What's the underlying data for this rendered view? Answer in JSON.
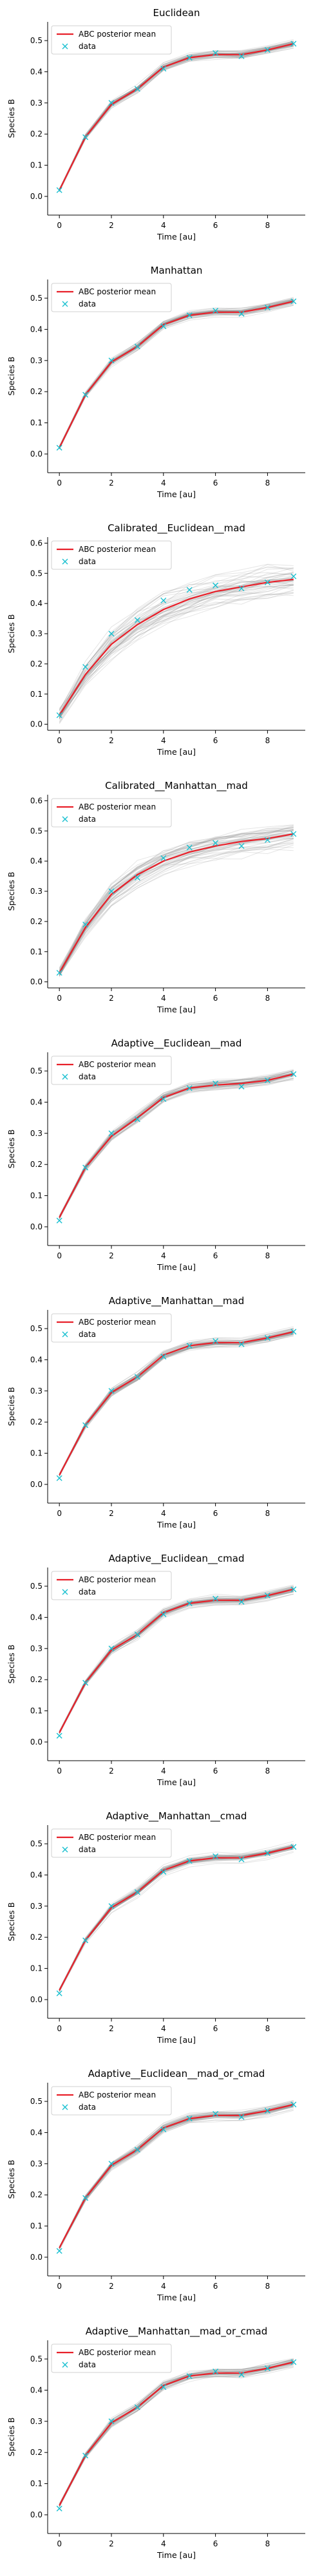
{
  "chart_data": [
    {
      "type": "line",
      "title": "Euclidean",
      "xlabel": "Time [au]",
      "ylabel": "Species B",
      "xlim": [
        -0.45,
        9.45
      ],
      "ylim": [
        -0.06,
        0.56
      ],
      "xticks": [
        0,
        2,
        4,
        6,
        8
      ],
      "yticks": [
        0.0,
        0.1,
        0.2,
        0.3,
        0.4,
        0.5
      ],
      "legend": {
        "position": "top-left",
        "entries": [
          "ABC posterior mean",
          "data"
        ]
      },
      "x": [
        0,
        1,
        2,
        3,
        4,
        5,
        6,
        7,
        8,
        9
      ],
      "series": [
        {
          "name": "ABC posterior mean",
          "kind": "line",
          "color": "#e8202a",
          "values": [
            0.02,
            0.19,
            0.295,
            0.345,
            0.415,
            0.445,
            0.455,
            0.455,
            0.47,
            0.49
          ]
        },
        {
          "name": "data",
          "kind": "marker",
          "marker": "x",
          "color": "#18c0d0",
          "values": [
            0.02,
            0.19,
            0.3,
            0.345,
            0.41,
            0.445,
            0.46,
            0.45,
            0.47,
            0.49
          ]
        }
      ],
      "simulation_spread": 0.012
    },
    {
      "type": "line",
      "title": "Manhattan",
      "xlabel": "Time [au]",
      "ylabel": "Species B",
      "xlim": [
        -0.45,
        9.45
      ],
      "ylim": [
        -0.06,
        0.56
      ],
      "xticks": [
        0,
        2,
        4,
        6,
        8
      ],
      "yticks": [
        0.0,
        0.1,
        0.2,
        0.3,
        0.4,
        0.5
      ],
      "legend": {
        "position": "top-left",
        "entries": [
          "ABC posterior mean",
          "data"
        ]
      },
      "x": [
        0,
        1,
        2,
        3,
        4,
        5,
        6,
        7,
        8,
        9
      ],
      "series": [
        {
          "name": "ABC posterior mean",
          "kind": "line",
          "color": "#e8202a",
          "values": [
            0.02,
            0.19,
            0.295,
            0.345,
            0.415,
            0.445,
            0.455,
            0.455,
            0.47,
            0.49
          ]
        },
        {
          "name": "data",
          "kind": "marker",
          "marker": "x",
          "color": "#18c0d0",
          "values": [
            0.02,
            0.19,
            0.3,
            0.345,
            0.41,
            0.445,
            0.46,
            0.45,
            0.47,
            0.49
          ]
        }
      ],
      "simulation_spread": 0.012
    },
    {
      "type": "line",
      "title": "Calibrated__Euclidean__mad",
      "xlabel": "Time [au]",
      "ylabel": "Species B",
      "xlim": [
        -0.45,
        9.45
      ],
      "ylim": [
        -0.02,
        0.62
      ],
      "xticks": [
        0,
        2,
        4,
        6,
        8
      ],
      "yticks": [
        0.0,
        0.1,
        0.2,
        0.3,
        0.4,
        0.5,
        0.6
      ],
      "legend": {
        "position": "top-left",
        "entries": [
          "ABC posterior mean",
          "data"
        ]
      },
      "x": [
        0,
        1,
        2,
        3,
        4,
        5,
        6,
        7,
        8,
        9
      ],
      "series": [
        {
          "name": "ABC posterior mean",
          "kind": "line",
          "color": "#e8202a",
          "values": [
            0.03,
            0.165,
            0.265,
            0.33,
            0.38,
            0.415,
            0.44,
            0.455,
            0.47,
            0.48
          ]
        },
        {
          "name": "data",
          "kind": "marker",
          "marker": "x",
          "color": "#18c0d0",
          "values": [
            0.03,
            0.19,
            0.3,
            0.345,
            0.41,
            0.445,
            0.46,
            0.45,
            0.47,
            0.49
          ]
        }
      ],
      "simulation_spread": 0.05
    },
    {
      "type": "line",
      "title": "Calibrated__Manhattan__mad",
      "xlabel": "Time [au]",
      "ylabel": "Species B",
      "xlim": [
        -0.45,
        9.45
      ],
      "ylim": [
        -0.02,
        0.62
      ],
      "xticks": [
        0,
        2,
        4,
        6,
        8
      ],
      "yticks": [
        0.0,
        0.1,
        0.2,
        0.3,
        0.4,
        0.5,
        0.6
      ],
      "legend": {
        "position": "top-left",
        "entries": [
          "ABC posterior mean",
          "data"
        ]
      },
      "x": [
        0,
        1,
        2,
        3,
        4,
        5,
        6,
        7,
        8,
        9
      ],
      "series": [
        {
          "name": "ABC posterior mean",
          "kind": "line",
          "color": "#e8202a",
          "values": [
            0.03,
            0.18,
            0.29,
            0.355,
            0.4,
            0.43,
            0.45,
            0.465,
            0.475,
            0.49
          ]
        },
        {
          "name": "data",
          "kind": "marker",
          "marker": "x",
          "color": "#18c0d0",
          "values": [
            0.03,
            0.19,
            0.3,
            0.345,
            0.41,
            0.445,
            0.46,
            0.45,
            0.47,
            0.49
          ]
        }
      ],
      "simulation_spread": 0.035
    },
    {
      "type": "line",
      "title": "Adaptive__Euclidean__mad",
      "xlabel": "Time [au]",
      "ylabel": "Species B",
      "xlim": [
        -0.45,
        9.45
      ],
      "ylim": [
        -0.06,
        0.56
      ],
      "xticks": [
        0,
        2,
        4,
        6,
        8
      ],
      "yticks": [
        0.0,
        0.1,
        0.2,
        0.3,
        0.4,
        0.5
      ],
      "legend": {
        "position": "top-left",
        "entries": [
          "ABC posterior mean",
          "data"
        ]
      },
      "x": [
        0,
        1,
        2,
        3,
        4,
        5,
        6,
        7,
        8,
        9
      ],
      "series": [
        {
          "name": "ABC posterior mean",
          "kind": "line",
          "color": "#e8202a",
          "values": [
            0.03,
            0.19,
            0.29,
            0.35,
            0.415,
            0.445,
            0.455,
            0.46,
            0.47,
            0.49
          ]
        },
        {
          "name": "data",
          "kind": "marker",
          "marker": "x",
          "color": "#18c0d0",
          "values": [
            0.02,
            0.19,
            0.3,
            0.345,
            0.41,
            0.445,
            0.46,
            0.45,
            0.47,
            0.49
          ]
        }
      ],
      "simulation_spread": 0.015
    },
    {
      "type": "line",
      "title": "Adaptive__Manhattan__mad",
      "xlabel": "Time [au]",
      "ylabel": "Species B",
      "xlim": [
        -0.45,
        9.45
      ],
      "ylim": [
        -0.06,
        0.56
      ],
      "xticks": [
        0,
        2,
        4,
        6,
        8
      ],
      "yticks": [
        0.0,
        0.1,
        0.2,
        0.3,
        0.4,
        0.5
      ],
      "legend": {
        "position": "top-left",
        "entries": [
          "ABC posterior mean",
          "data"
        ]
      },
      "x": [
        0,
        1,
        2,
        3,
        4,
        5,
        6,
        7,
        8,
        9
      ],
      "series": [
        {
          "name": "ABC posterior mean",
          "kind": "line",
          "color": "#e8202a",
          "values": [
            0.03,
            0.19,
            0.295,
            0.345,
            0.415,
            0.445,
            0.455,
            0.455,
            0.47,
            0.49
          ]
        },
        {
          "name": "data",
          "kind": "marker",
          "marker": "x",
          "color": "#18c0d0",
          "values": [
            0.02,
            0.19,
            0.3,
            0.345,
            0.41,
            0.445,
            0.46,
            0.45,
            0.47,
            0.49
          ]
        }
      ],
      "simulation_spread": 0.013
    },
    {
      "type": "line",
      "title": "Adaptive__Euclidean__cmad",
      "xlabel": "Time [au]",
      "ylabel": "Species B",
      "xlim": [
        -0.45,
        9.45
      ],
      "ylim": [
        -0.06,
        0.56
      ],
      "xticks": [
        0,
        2,
        4,
        6,
        8
      ],
      "yticks": [
        0.0,
        0.1,
        0.2,
        0.3,
        0.4,
        0.5
      ],
      "legend": {
        "position": "top-left",
        "entries": [
          "ABC posterior mean",
          "data"
        ]
      },
      "x": [
        0,
        1,
        2,
        3,
        4,
        5,
        6,
        7,
        8,
        9
      ],
      "series": [
        {
          "name": "ABC posterior mean",
          "kind": "line",
          "color": "#e8202a",
          "values": [
            0.03,
            0.19,
            0.295,
            0.345,
            0.415,
            0.445,
            0.455,
            0.455,
            0.47,
            0.49
          ]
        },
        {
          "name": "data",
          "kind": "marker",
          "marker": "x",
          "color": "#18c0d0",
          "values": [
            0.02,
            0.19,
            0.3,
            0.345,
            0.41,
            0.445,
            0.46,
            0.45,
            0.47,
            0.49
          ]
        }
      ],
      "simulation_spread": 0.012
    },
    {
      "type": "line",
      "title": "Adaptive__Manhattan__cmad",
      "xlabel": "Time [au]",
      "ylabel": "Species B",
      "xlim": [
        -0.45,
        9.45
      ],
      "ylim": [
        -0.06,
        0.56
      ],
      "xticks": [
        0,
        2,
        4,
        6,
        8
      ],
      "yticks": [
        0.0,
        0.1,
        0.2,
        0.3,
        0.4,
        0.5
      ],
      "legend": {
        "position": "top-left",
        "entries": [
          "ABC posterior mean",
          "data"
        ]
      },
      "x": [
        0,
        1,
        2,
        3,
        4,
        5,
        6,
        7,
        8,
        9
      ],
      "series": [
        {
          "name": "ABC posterior mean",
          "kind": "line",
          "color": "#e8202a",
          "values": [
            0.03,
            0.19,
            0.295,
            0.345,
            0.415,
            0.445,
            0.455,
            0.455,
            0.47,
            0.49
          ]
        },
        {
          "name": "data",
          "kind": "marker",
          "marker": "x",
          "color": "#18c0d0",
          "values": [
            0.02,
            0.19,
            0.3,
            0.345,
            0.41,
            0.445,
            0.46,
            0.45,
            0.47,
            0.49
          ]
        }
      ],
      "simulation_spread": 0.013
    },
    {
      "type": "line",
      "title": "Adaptive__Euclidean__mad_or_cmad",
      "xlabel": "Time [au]",
      "ylabel": "Species B",
      "xlim": [
        -0.45,
        9.45
      ],
      "ylim": [
        -0.06,
        0.56
      ],
      "xticks": [
        0,
        2,
        4,
        6,
        8
      ],
      "yticks": [
        0.0,
        0.1,
        0.2,
        0.3,
        0.4,
        0.5
      ],
      "legend": {
        "position": "top-left",
        "entries": [
          "ABC posterior mean",
          "data"
        ]
      },
      "x": [
        0,
        1,
        2,
        3,
        4,
        5,
        6,
        7,
        8,
        9
      ],
      "series": [
        {
          "name": "ABC posterior mean",
          "kind": "line",
          "color": "#e8202a",
          "values": [
            0.03,
            0.19,
            0.295,
            0.345,
            0.415,
            0.445,
            0.455,
            0.455,
            0.47,
            0.49
          ]
        },
        {
          "name": "data",
          "kind": "marker",
          "marker": "x",
          "color": "#18c0d0",
          "values": [
            0.02,
            0.19,
            0.3,
            0.345,
            0.41,
            0.445,
            0.46,
            0.45,
            0.47,
            0.49
          ]
        }
      ],
      "simulation_spread": 0.013
    },
    {
      "type": "line",
      "title": "Adaptive__Manhattan__mad_or_cmad",
      "xlabel": "Time [au]",
      "ylabel": "Species B",
      "xlim": [
        -0.45,
        9.45
      ],
      "ylim": [
        -0.06,
        0.56
      ],
      "xticks": [
        0,
        2,
        4,
        6,
        8
      ],
      "yticks": [
        0.0,
        0.1,
        0.2,
        0.3,
        0.4,
        0.5
      ],
      "legend": {
        "position": "top-left",
        "entries": [
          "ABC posterior mean",
          "data"
        ]
      },
      "x": [
        0,
        1,
        2,
        3,
        4,
        5,
        6,
        7,
        8,
        9
      ],
      "series": [
        {
          "name": "ABC posterior mean",
          "kind": "line",
          "color": "#e8202a",
          "values": [
            0.03,
            0.19,
            0.295,
            0.345,
            0.415,
            0.445,
            0.455,
            0.455,
            0.47,
            0.49
          ]
        },
        {
          "name": "data",
          "kind": "marker",
          "marker": "x",
          "color": "#18c0d0",
          "values": [
            0.02,
            0.19,
            0.3,
            0.345,
            0.41,
            0.445,
            0.46,
            0.45,
            0.47,
            0.49
          ]
        }
      ],
      "simulation_spread": 0.014
    }
  ]
}
